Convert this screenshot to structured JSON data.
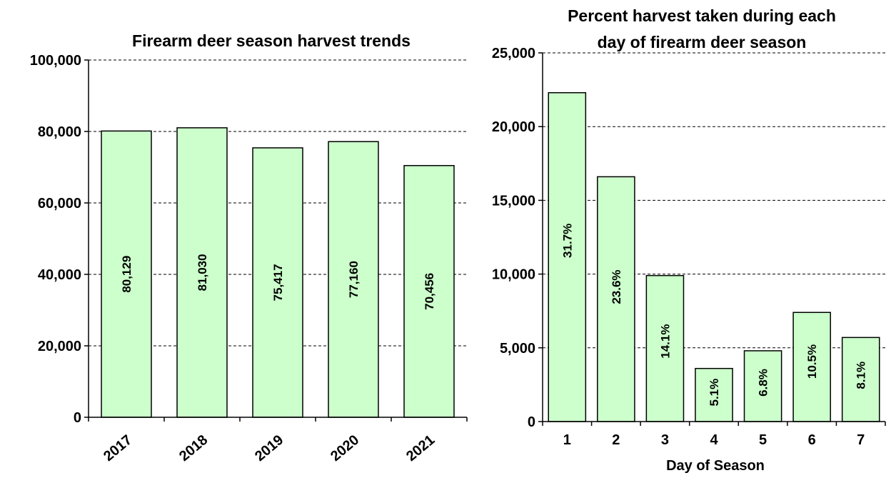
{
  "chart_data": [
    {
      "type": "bar",
      "title": "Firearm deer season harvest trends",
      "xlabel": "",
      "ylabel": "",
      "categories": [
        "2017",
        "2018",
        "2019",
        "2020",
        "2021"
      ],
      "values": [
        80129,
        81030,
        75417,
        77160,
        70456
      ],
      "value_labels": [
        "80,129",
        "81,030",
        "75,417",
        "77,160",
        "70,456"
      ],
      "ylim": [
        0,
        100000
      ],
      "yticks": [
        0,
        20000,
        40000,
        60000,
        80000,
        100000
      ],
      "ytick_labels": [
        "0",
        "20,000",
        "40,000",
        "60,000",
        "80,000",
        "100,000"
      ],
      "grid": true,
      "bar_color": "#ccffcc"
    },
    {
      "type": "bar",
      "title_lines": [
        "Percent harvest taken during each",
        "day of firearm deer season"
      ],
      "xlabel": "Day of Season",
      "ylabel": "",
      "categories": [
        "1",
        "2",
        "3",
        "4",
        "5",
        "6",
        "7"
      ],
      "values": [
        22300,
        16600,
        9900,
        3600,
        4800,
        7400,
        5700
      ],
      "value_labels": [
        "31.7%",
        "23.6%",
        "14.1%",
        "5.1%",
        "6.8%",
        "10.5%",
        "8.1%"
      ],
      "ylim": [
        0,
        25000
      ],
      "yticks": [
        0,
        5000,
        10000,
        15000,
        20000,
        25000
      ],
      "ytick_labels": [
        "0",
        "5,000",
        "10,000",
        "15,000",
        "20,000",
        "25,000"
      ],
      "grid": true,
      "bar_color": "#ccffcc"
    }
  ]
}
